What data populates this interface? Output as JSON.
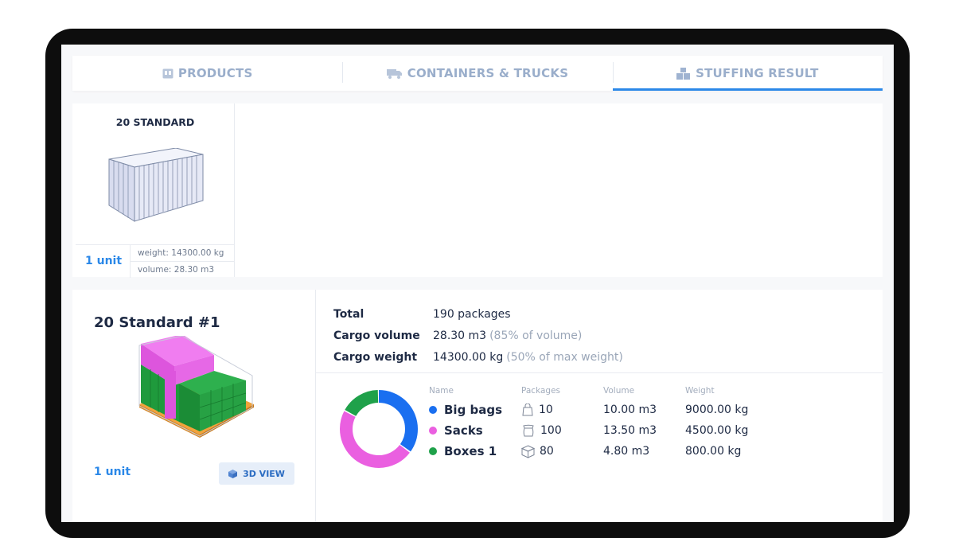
{
  "tabs": [
    {
      "label": "PRODUCTS",
      "icon": "product-box-icon"
    },
    {
      "label": "CONTAINERS & TRUCKS",
      "icon": "truck-icon"
    },
    {
      "label": "STUFFING RESULT",
      "icon": "stacked-boxes-icon",
      "active": true
    }
  ],
  "container_summary": {
    "title": "20 STANDARD",
    "units": "1 unit",
    "weight": "weight: 14300.00 kg",
    "volume": "volume: 28.30 m3"
  },
  "result": {
    "title": "20 Standard #1",
    "units": "1 unit",
    "view_button": "3D VIEW",
    "totals": [
      {
        "label": "Total",
        "value": "190 packages",
        "note": ""
      },
      {
        "label": "Cargo volume",
        "value": "28.30 m3",
        "note": "(85% of volume)"
      },
      {
        "label": "Cargo weight",
        "value": "14300.00 kg",
        "note": "(50% of max weight)"
      }
    ],
    "legend_headers": {
      "name": "Name",
      "packages": "Packages",
      "volume": "Volume",
      "weight": "Weight"
    },
    "items": [
      {
        "name": "Big bags",
        "packages": "10",
        "volume": "10.00 m3",
        "weight": "9000.00 kg",
        "color": "#1a6ff0",
        "icon": "bag-icon"
      },
      {
        "name": "Sacks",
        "packages": "100",
        "volume": "13.50 m3",
        "weight": "4500.00 kg",
        "color": "#ea5fe0",
        "icon": "sack-icon"
      },
      {
        "name": "Boxes 1",
        "packages": "80",
        "volume": "4.80 m3",
        "weight": "800.00 kg",
        "color": "#1fa14a",
        "icon": "box-icon"
      }
    ]
  },
  "chart_data": {
    "type": "pie",
    "categories": [
      "Big bags",
      "Sacks",
      "Boxes 1"
    ],
    "values": [
      10.0,
      13.5,
      4.8
    ],
    "colors": [
      "#1a6ff0",
      "#ea5fe0",
      "#1fa14a"
    ]
  }
}
